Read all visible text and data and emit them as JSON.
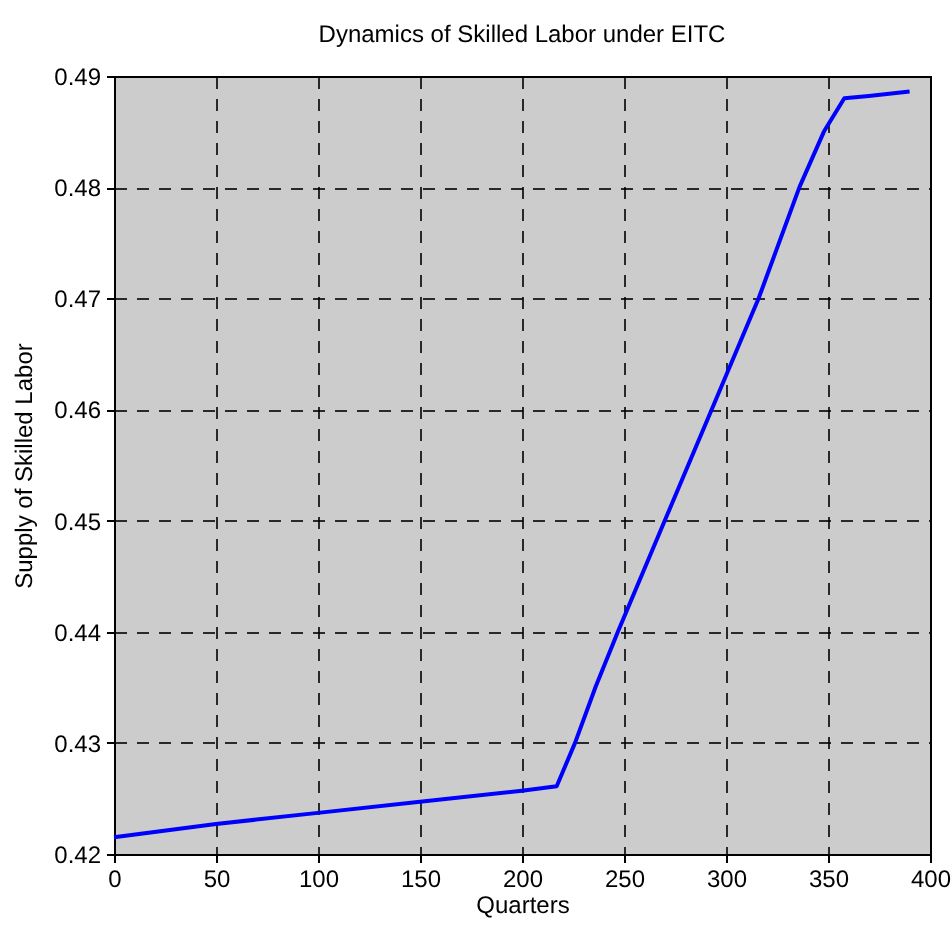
{
  "chart_data": {
    "type": "line",
    "title": "Dynamics of Skilled Labor under EITC",
    "xlabel": "Quarters",
    "ylabel": "Supply of Skilled Labor",
    "x": [
      0,
      50,
      100,
      150,
      200,
      217,
      226,
      236,
      247,
      270,
      293,
      316,
      336,
      348,
      358,
      370,
      390
    ],
    "series": [
      {
        "color": "#0000ff",
        "values": [
          0.4215,
          0.4227,
          0.4237,
          0.4247,
          0.4257,
          0.4261,
          0.43,
          0.435,
          0.44,
          0.45,
          0.46,
          0.47,
          0.48,
          0.485,
          0.488,
          0.4882,
          0.4886
        ]
      }
    ],
    "xlim": [
      0,
      400
    ],
    "xticks": [
      0,
      50,
      100,
      150,
      200,
      250,
      300,
      350,
      400
    ],
    "ylim": [
      0.42,
      0.49
    ],
    "yticks": [
      0.42,
      0.43,
      0.44,
      0.45,
      0.46,
      0.47,
      0.48,
      0.49
    ],
    "grid": true,
    "legend": false,
    "marker": "none",
    "line_style": "solid"
  }
}
